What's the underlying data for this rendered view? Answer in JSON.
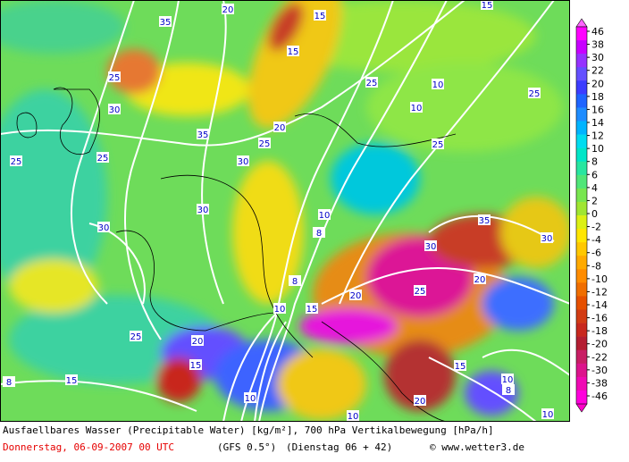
{
  "map": {
    "contour_labels": [
      35,
      20,
      15,
      15,
      15,
      25,
      30,
      35,
      20,
      25,
      30,
      25,
      25,
      30,
      30,
      10,
      8,
      25,
      10,
      10,
      25,
      25,
      35,
      30,
      30,
      25,
      20,
      15,
      10,
      8,
      20,
      20,
      15,
      25,
      15,
      8,
      10,
      20,
      15,
      10,
      8,
      10,
      10
    ],
    "colorbar": {
      "labels": [
        46,
        38,
        30,
        22,
        20,
        18,
        16,
        14,
        12,
        10,
        8,
        6,
        4,
        2,
        0,
        -2,
        -4,
        -6,
        -8,
        -10,
        -12,
        -14,
        -16,
        -18,
        -20,
        -22,
        -30,
        -38,
        -46
      ],
      "colors": [
        "#ff00ff",
        "#c800ff",
        "#9632ff",
        "#6450ff",
        "#3c3cff",
        "#1e64ff",
        "#1e8cff",
        "#00b4ff",
        "#00dcf0",
        "#00e6c8",
        "#28e6a0",
        "#50e678",
        "#78e650",
        "#a0e632",
        "#dcf014",
        "#ffe600",
        "#ffc800",
        "#ffaa00",
        "#ff8c00",
        "#f06e00",
        "#e65000",
        "#d23c14",
        "#c8281e",
        "#b41e32",
        "#c81e64",
        "#dc148c",
        "#f00ab4",
        "#ff00dc"
      ],
      "top_color": "#ff64ff",
      "bottom_color": "#ff00c8"
    },
    "caption": {
      "line1": "Ausfaellbares Wasser (Precipitable Water) [kg/m²], 700 hPa Vertikalbewegung [hPa/h]",
      "date": "Donnerstag, 06-09-2007  00 UTC",
      "model": "(GFS 0.5°)",
      "run": "(Dienstag 06 + 42)",
      "copyright": "© www.wetter3.de"
    }
  }
}
